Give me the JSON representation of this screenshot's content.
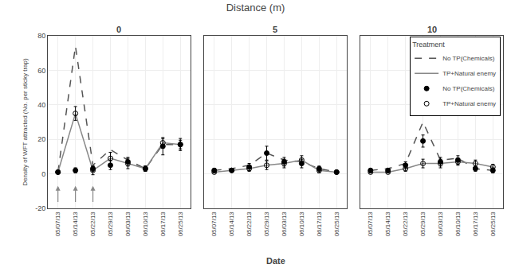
{
  "title": "Distance (m)",
  "xlabel": "Date",
  "chart_data": [
    {
      "type": "line",
      "title": "0",
      "ylabel": "Density of WFT attracted (No. per sticky trap)",
      "categories": [
        "05/07/13",
        "05/14/13",
        "05/22/13",
        "05/29/13",
        "06/03/13",
        "06/10/13",
        "06/17/13",
        "06/25/13"
      ],
      "ylim": [
        -20,
        80
      ],
      "yticks": [
        -20,
        0,
        20,
        40,
        60,
        80
      ],
      "series": [
        {
          "name": "No TP(Chemicals)",
          "type": "line",
          "line_style": "dashed",
          "color": "#555555",
          "values": [
            1,
            74,
            5,
            14,
            8,
            3,
            17,
            17
          ]
        },
        {
          "name": "TP+Natural enemy",
          "type": "line",
          "line_style": "solid",
          "color": "#888888",
          "values": [
            1,
            35,
            2,
            9,
            6,
            3,
            18,
            17
          ]
        },
        {
          "name": "No TP(Chemicals)",
          "type": "scatter",
          "marker": "filled",
          "color": "#000000",
          "values": [
            1,
            2,
            3,
            5,
            7,
            3,
            16,
            17
          ],
          "errors": [
            0.5,
            1.5,
            1.5,
            2.5,
            2.5,
            1.5,
            5,
            2.5
          ]
        },
        {
          "name": "TP+Natural enemy",
          "type": "scatter",
          "marker": "open",
          "color": "#000000",
          "values": [
            1,
            35,
            2,
            9,
            6,
            3,
            18,
            17
          ],
          "errors": [
            0.5,
            4,
            2.5,
            3.5,
            3,
            1.5,
            2.5,
            3.5
          ]
        }
      ],
      "arrows": [
        {
          "x": 0,
          "from": -17,
          "to": -7,
          "color": "#888888"
        },
        {
          "x": 1,
          "from": -17,
          "to": -7,
          "color": "#888888"
        },
        {
          "x": 2,
          "from": -17,
          "to": -7,
          "color": "#888888"
        }
      ]
    },
    {
      "type": "line",
      "title": "5",
      "tick_labels": "x",
      "categories": [
        "05/07/13",
        "05/14/13",
        "05/22/13",
        "05/29/13",
        "06/03/13",
        "06/10/13",
        "06/17/13",
        "06/25/13"
      ],
      "ylim": [
        -20,
        80
      ],
      "yticks": [
        -20,
        0,
        20,
        40,
        60,
        80
      ],
      "series": [
        {
          "name": "No TP(Chemicals)",
          "type": "line",
          "line_style": "dashed",
          "color": "#555555",
          "values": [
            2,
            3,
            5,
            12,
            8,
            7,
            3,
            1
          ]
        },
        {
          "name": "TP+Natural enemy",
          "type": "line",
          "line_style": "solid",
          "color": "#888888",
          "values": [
            1,
            2,
            3,
            5,
            6,
            8,
            2,
            1
          ]
        },
        {
          "name": "No TP(Chemicals)",
          "type": "scatter",
          "marker": "filled",
          "color": "#000000",
          "values": [
            2,
            2,
            4,
            12,
            7,
            6,
            3,
            1
          ],
          "errors": [
            1,
            1,
            2,
            4,
            2.5,
            2.5,
            1.5,
            0.5
          ]
        },
        {
          "name": "TP+Natural enemy",
          "type": "scatter",
          "marker": "open",
          "color": "#000000",
          "values": [
            1,
            2,
            3,
            5,
            6,
            8,
            2,
            1
          ],
          "errors": [
            0.5,
            1,
            1.5,
            2.5,
            2.5,
            2.5,
            1.5,
            0.5
          ]
        }
      ]
    },
    {
      "type": "line",
      "title": "10",
      "tick_labels": "x",
      "legend": "upper right",
      "legend_title": "Treatment",
      "categories": [
        "05/07/13",
        "05/14/13",
        "05/22/13",
        "05/29/13",
        "06/03/13",
        "06/10/13",
        "06/17/13",
        "06/25/13"
      ],
      "ylim": [
        -20,
        80
      ],
      "yticks": [
        -20,
        0,
        20,
        40,
        60,
        80
      ],
      "series": [
        {
          "name": "No TP(Chemicals)",
          "type": "line",
          "line_style": "dashed",
          "color": "#555555",
          "values": [
            2,
            3,
            6,
            30,
            8,
            9,
            3,
            2
          ]
        },
        {
          "name": "TP+Natural enemy",
          "type": "line",
          "line_style": "solid",
          "color": "#888888",
          "values": [
            1,
            1,
            3,
            6,
            6,
            7,
            6,
            4
          ]
        },
        {
          "name": "No TP(Chemicals)",
          "type": "scatter",
          "marker": "filled",
          "color": "#000000",
          "values": [
            2,
            2,
            5,
            19,
            7,
            8,
            3,
            2
          ],
          "errors": [
            1,
            1,
            2,
            3.5,
            2.5,
            2.5,
            1.5,
            1.5
          ]
        },
        {
          "name": "TP+Natural enemy",
          "type": "scatter",
          "marker": "open",
          "color": "#000000",
          "values": [
            1,
            1,
            3,
            6,
            6,
            7,
            6,
            4
          ],
          "errors": [
            0.5,
            0.5,
            1.5,
            2.5,
            2.5,
            2,
            2,
            1.5
          ]
        }
      ]
    }
  ]
}
